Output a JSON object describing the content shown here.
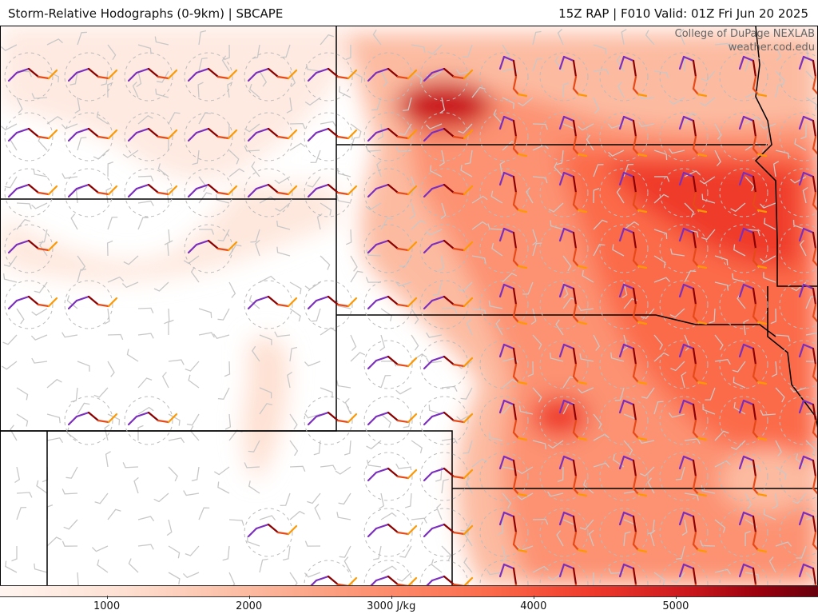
{
  "header": {
    "product_title": "Storm-Relative Hodographs (0-9km) | SBCAPE",
    "run_info": "15Z RAP | F010 Valid: 01Z Fri Jun 20 2025"
  },
  "credit": {
    "line1": "College of DuPage NEXLAB",
    "line2": "weather.cod.edu"
  },
  "colorbar": {
    "ticks": [
      {
        "label": "1000",
        "value": 1000
      },
      {
        "label": "2000",
        "value": 2000
      },
      {
        "label": "3000 J/kg",
        "value": 3000
      },
      {
        "label": "4000",
        "value": 4000
      },
      {
        "label": "5000",
        "value": 5000
      }
    ],
    "scale_min": 250,
    "scale_max": 6000,
    "colors": [
      "#fff5f0",
      "#fee0d2",
      "#fcbba1",
      "#fc9272",
      "#fb6a4a",
      "#ef3b2c",
      "#cb181d",
      "#99000d",
      "#67000d"
    ]
  },
  "hodograph_colors": [
    "#7b2fbe",
    "#8b0000",
    "#e64a19",
    "#ff9800"
  ],
  "barb_color": "#c8c8c8"
}
